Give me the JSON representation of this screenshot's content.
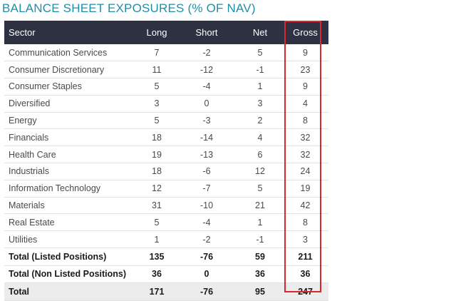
{
  "title": "BALANCE SHEET EXPOSURES (% OF NAV)",
  "columns": {
    "sector": "Sector",
    "long": "Long",
    "short": "Short",
    "net": "Net",
    "gross": "Gross"
  },
  "rows": [
    {
      "sector": "Communication Services",
      "long": "7",
      "short": "-2",
      "net": "5",
      "gross": "9"
    },
    {
      "sector": "Consumer Discretionary",
      "long": "11",
      "short": "-12",
      "net": "-1",
      "gross": "23"
    },
    {
      "sector": "Consumer Staples",
      "long": "5",
      "short": "-4",
      "net": "1",
      "gross": "9"
    },
    {
      "sector": "Diversified",
      "long": "3",
      "short": "0",
      "net": "3",
      "gross": "4"
    },
    {
      "sector": "Energy",
      "long": "5",
      "short": "-3",
      "net": "2",
      "gross": "8"
    },
    {
      "sector": "Financials",
      "long": "18",
      "short": "-14",
      "net": "4",
      "gross": "32"
    },
    {
      "sector": "Health Care",
      "long": "19",
      "short": "-13",
      "net": "6",
      "gross": "32"
    },
    {
      "sector": "Industrials",
      "long": "18",
      "short": "-6",
      "net": "12",
      "gross": "24"
    },
    {
      "sector": "Information Technology",
      "long": "12",
      "short": "-7",
      "net": "5",
      "gross": "19"
    },
    {
      "sector": "Materials",
      "long": "31",
      "short": "-10",
      "net": "21",
      "gross": "42"
    },
    {
      "sector": "Real Estate",
      "long": "5",
      "short": "-4",
      "net": "1",
      "gross": "8"
    },
    {
      "sector": "Utilities",
      "long": "1",
      "short": "-2",
      "net": "-1",
      "gross": "3"
    }
  ],
  "totals": [
    {
      "sector": "Total (Listed Positions)",
      "long": "135",
      "short": "-76",
      "net": "59",
      "gross": "211"
    },
    {
      "sector": "Total (Non Listed Positions)",
      "long": "36",
      "short": "0",
      "net": "36",
      "gross": "36"
    },
    {
      "sector": "Total",
      "long": "171",
      "short": "-76",
      "net": "95",
      "gross": "247"
    }
  ],
  "colors": {
    "title": "#1f8fa8",
    "header_bg": "#2d3142",
    "highlight_border": "#d9272e",
    "grand_total_bg": "#ececec"
  }
}
